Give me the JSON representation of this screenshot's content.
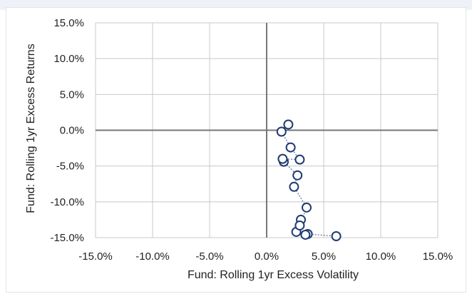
{
  "chart_data": {
    "type": "scatter",
    "xlabel": "Fund: Rolling 1yr Excess Volatility",
    "ylabel": "Fund: Rolling 1yr Excess Returns",
    "xlim": [
      -15,
      15
    ],
    "ylim": [
      -15,
      15
    ],
    "x_ticks": [
      "-15.0%",
      "-10.0%",
      "-5.0%",
      "0.0%",
      "5.0%",
      "10.0%",
      "15.0%"
    ],
    "y_ticks": [
      "15.0%",
      "10.0%",
      "5.0%",
      "0.0%",
      "-5.0%",
      "-10.0%",
      "-15.0%"
    ],
    "grid": true,
    "series": [
      {
        "connected": "dotted",
        "points": [
          {
            "x": 6.1,
            "y": -14.8
          },
          {
            "x": 3.6,
            "y": -14.5
          },
          {
            "x": 3.4,
            "y": -14.6
          },
          {
            "x": 2.6,
            "y": -14.2
          },
          {
            "x": 3.0,
            "y": -12.5
          },
          {
            "x": 2.9,
            "y": -13.3
          },
          {
            "x": 3.5,
            "y": -10.8
          },
          {
            "x": 2.4,
            "y": -7.9
          },
          {
            "x": 2.7,
            "y": -6.3
          },
          {
            "x": 1.5,
            "y": -4.4
          },
          {
            "x": 1.4,
            "y": -4.0
          },
          {
            "x": 2.9,
            "y": -4.1
          },
          {
            "x": 2.1,
            "y": -2.4
          },
          {
            "x": 1.3,
            "y": -0.2
          },
          {
            "x": 1.9,
            "y": 0.8
          }
        ]
      }
    ],
    "colors": {
      "marker_stroke": "#1f3b73",
      "marker_fill": "#ffffff",
      "grid": "#c8c8c8",
      "zero_axis": "#777777"
    }
  }
}
